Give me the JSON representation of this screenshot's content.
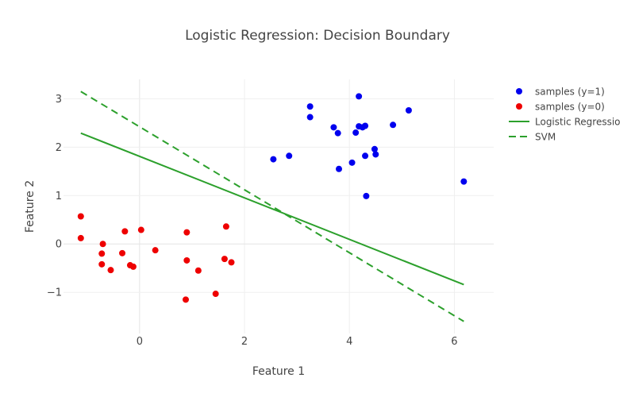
{
  "chart_data": {
    "type": "scatter",
    "title": "Logistic Regression: Decision Boundary",
    "xlabel": "Feature 1",
    "ylabel": "Feature 2",
    "xlim": [
      -1.45,
      6.75
    ],
    "ylim": [
      -1.85,
      3.4
    ],
    "xticks": [
      0,
      2,
      4,
      6
    ],
    "yticks": [
      -1,
      0,
      1,
      2,
      3
    ],
    "grid": true,
    "legend_position": "top-right",
    "series": [
      {
        "name": "samples (y=1)",
        "kind": "markers",
        "color": "#0000ee",
        "points": [
          [
            2.55,
            1.75
          ],
          [
            2.85,
            1.82
          ],
          [
            3.25,
            2.84
          ],
          [
            3.25,
            2.62
          ],
          [
            3.7,
            2.41
          ],
          [
            3.78,
            2.29
          ],
          [
            3.8,
            1.55
          ],
          [
            4.05,
            1.68
          ],
          [
            4.12,
            2.3
          ],
          [
            4.18,
            3.05
          ],
          [
            4.18,
            2.43
          ],
          [
            4.25,
            2.41
          ],
          [
            4.3,
            2.44
          ],
          [
            4.3,
            1.82
          ],
          [
            4.32,
            0.99
          ],
          [
            4.48,
            1.96
          ],
          [
            4.5,
            1.85
          ],
          [
            4.83,
            2.46
          ],
          [
            5.13,
            2.76
          ],
          [
            6.18,
            1.29
          ]
        ]
      },
      {
        "name": "samples (y=0)",
        "kind": "markers",
        "color": "#ee0000",
        "points": [
          [
            -1.12,
            0.57
          ],
          [
            -1.12,
            0.12
          ],
          [
            -0.7,
            0.0
          ],
          [
            -0.72,
            -0.2
          ],
          [
            -0.72,
            -0.42
          ],
          [
            -0.55,
            -0.54
          ],
          [
            -0.33,
            -0.19
          ],
          [
            -0.28,
            0.26
          ],
          [
            -0.18,
            -0.44
          ],
          [
            -0.12,
            -0.47
          ],
          [
            0.03,
            0.29
          ],
          [
            0.3,
            -0.13
          ],
          [
            0.88,
            -1.15
          ],
          [
            0.9,
            0.24
          ],
          [
            0.9,
            -0.34
          ],
          [
            1.12,
            -0.55
          ],
          [
            1.45,
            -1.03
          ],
          [
            1.62,
            -0.31
          ],
          [
            1.65,
            0.36
          ],
          [
            1.75,
            -0.38
          ]
        ]
      },
      {
        "name": "Logistic Regressio",
        "kind": "line",
        "dash": "solid",
        "color": "#2ca02c",
        "points": [
          [
            -1.12,
            2.29
          ],
          [
            6.18,
            -0.84
          ]
        ]
      },
      {
        "name": "SVM",
        "kind": "line",
        "dash": "dashed",
        "color": "#2ca02c",
        "points": [
          [
            -1.12,
            3.15
          ],
          [
            6.18,
            -1.6
          ]
        ]
      }
    ]
  }
}
